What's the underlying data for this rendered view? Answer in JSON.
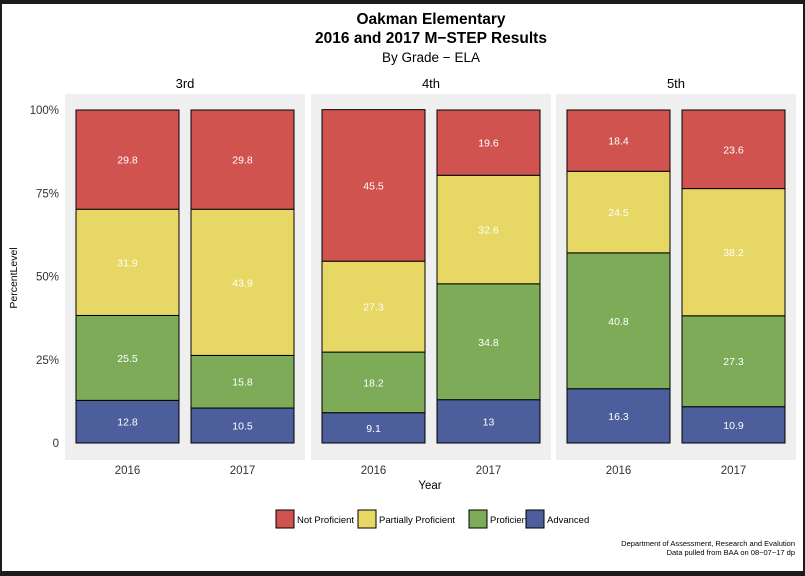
{
  "title_line1": "Oakman Elementary",
  "title_line2": "2016 and 2017 M−STEP Results",
  "subtitle": "By Grade − ELA",
  "footer_line1": "Department of Assessment, Research and Evalution",
  "footer_line2": "Data pulled from BAA on 08−07−17 dp",
  "chart_data": {
    "type": "bar",
    "stacked": true,
    "xlabel": "Year",
    "ylabel": "PercentLevel",
    "ylim": [
      0,
      100
    ],
    "yticks": [
      0,
      25,
      50,
      75,
      100
    ],
    "ytick_labels": [
      "0",
      "25%",
      "50%",
      "75%",
      "100%"
    ],
    "legend": {
      "position": "bottom",
      "entries": [
        "Not Proficient",
        "Partially Proficient",
        "Proficient",
        "Advanced"
      ]
    },
    "colors": {
      "Not Proficient": "#d1534f",
      "Partially Proficient": "#e7d765",
      "Proficient": "#7dab58",
      "Advanced": "#4c5f9c"
    },
    "stack_order": [
      "Advanced",
      "Proficient",
      "Partially Proficient",
      "Not Proficient"
    ],
    "panels": [
      {
        "grade": "3rd",
        "bars": [
          {
            "year": "2016",
            "Advanced": 12.8,
            "Proficient": 25.5,
            "Partially Proficient": 31.9,
            "Not Proficient": 29.8,
            "labels": {
              "Advanced": "12.8",
              "Proficient": "25.5",
              "Partially Proficient": "31.9",
              "Not Proficient": "29.8"
            }
          },
          {
            "year": "2017",
            "Advanced": 10.5,
            "Proficient": 15.8,
            "Partially Proficient": 43.9,
            "Not Proficient": 29.8,
            "labels": {
              "Advanced": "10.5",
              "Proficient": "15.8",
              "Partially Proficient": "43.9",
              "Not Proficient": "29.8"
            }
          }
        ]
      },
      {
        "grade": "4th",
        "bars": [
          {
            "year": "2016",
            "Advanced": 9.1,
            "Proficient": 18.2,
            "Partially Proficient": 27.3,
            "Not Proficient": 45.5,
            "labels": {
              "Advanced": "9.1",
              "Proficient": "18.2",
              "Partially Proficient": "27.3",
              "Not Proficient": "45.5"
            }
          },
          {
            "year": "2017",
            "Advanced": 13,
            "Proficient": 34.8,
            "Partially Proficient": 32.6,
            "Not Proficient": 19.6,
            "labels": {
              "Advanced": "13",
              "Proficient": "34.8",
              "Partially Proficient": "32.6",
              "Not Proficient": "19.6"
            }
          }
        ]
      },
      {
        "grade": "5th",
        "bars": [
          {
            "year": "2016",
            "Advanced": 16.3,
            "Proficient": 40.8,
            "Partially Proficient": 24.5,
            "Not Proficient": 18.4,
            "labels": {
              "Advanced": "16.3",
              "Proficient": "40.8",
              "Partially Proficient": "24.5",
              "Not Proficient": "18.4"
            }
          },
          {
            "year": "2017",
            "Advanced": 10.9,
            "Proficient": 27.3,
            "Partially Proficient": 38.2,
            "Not Proficient": 23.6,
            "labels": {
              "Advanced": "10.9",
              "Proficient": "27.3",
              "Partially Proficient": "38.2",
              "Not Proficient": "23.6"
            }
          }
        ]
      }
    ]
  }
}
